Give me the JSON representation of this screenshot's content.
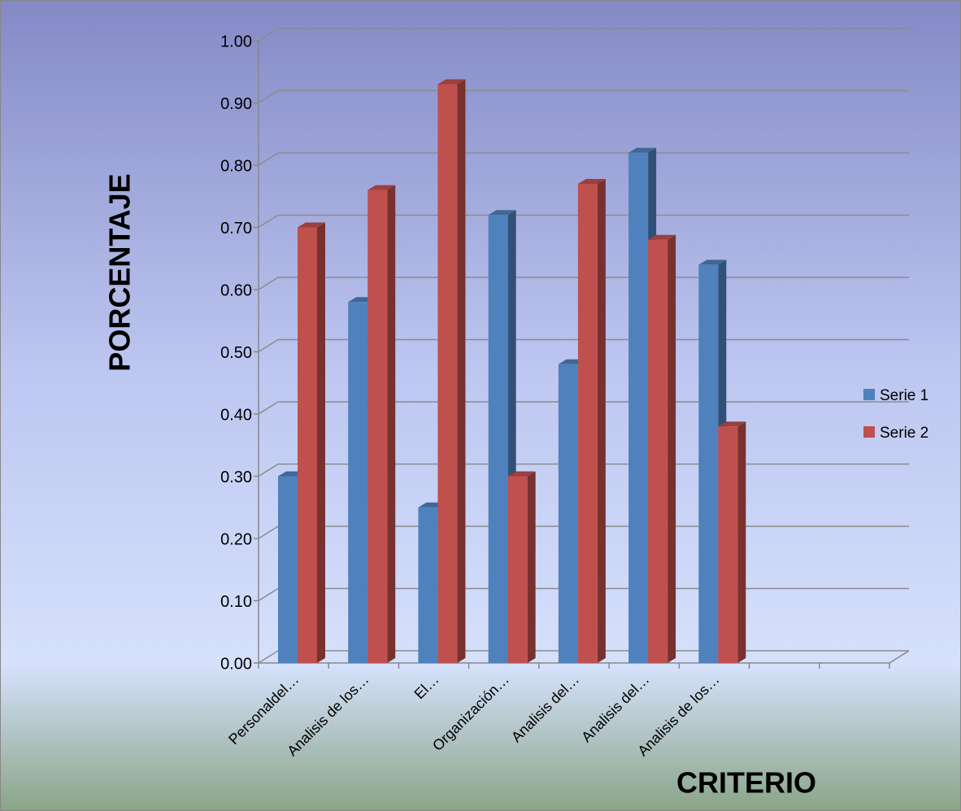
{
  "chart_data": {
    "type": "bar3d",
    "y_label": "PORCENTAJE",
    "x_label": "CRITERIO",
    "categories": [
      "Personaldel…",
      "Analisis de los…",
      "El…",
      "Organización…",
      "Analisis del…",
      "Analisis del…",
      "Analisis de los…",
      null,
      null
    ],
    "series": [
      {
        "name": "Serie 1",
        "color": "#4f81bd",
        "values": [
          0.3,
          0.58,
          0.25,
          0.72,
          0.48,
          0.82,
          0.64,
          null,
          null
        ]
      },
      {
        "name": "Serie 2",
        "color": "#c0504d",
        "values": [
          0.7,
          0.76,
          0.93,
          0.3,
          0.77,
          0.68,
          0.38,
          null,
          null
        ]
      }
    ],
    "ylim": [
      0,
      1
    ],
    "yticks": [
      {
        "value": 0,
        "label": "0.00"
      },
      {
        "value": 0.1,
        "label": "0.10"
      },
      {
        "value": 0.2,
        "label": "0.20"
      },
      {
        "value": 0.3,
        "label": "0.30"
      },
      {
        "value": 0.4,
        "label": "0.40"
      },
      {
        "value": 0.5,
        "label": "0.50"
      },
      {
        "value": 0.6,
        "label": "0.60"
      },
      {
        "value": 0.7,
        "label": "0.70"
      },
      {
        "value": 0.8,
        "label": "0.80"
      },
      {
        "value": 0.9,
        "label": "0.90"
      },
      {
        "value": 1,
        "label": "1.00"
      }
    ],
    "grid": true,
    "legend": "right"
  }
}
